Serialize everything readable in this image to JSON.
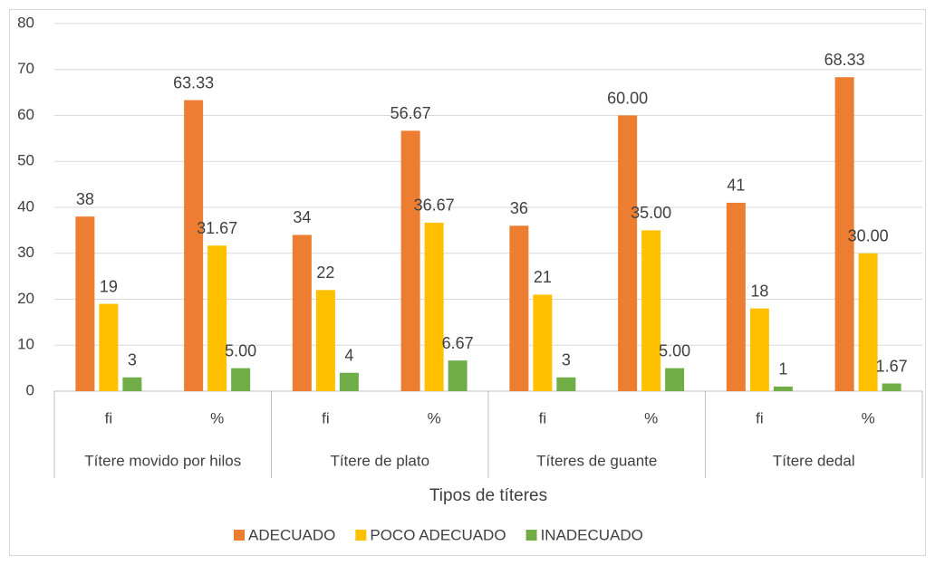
{
  "chart_data": {
    "type": "bar",
    "x_label": "Tipos de títeres",
    "categories": [
      "fi",
      "%",
      "fi",
      "%",
      "fi",
      "%",
      "fi",
      "%"
    ],
    "groups": [
      "Títere movido por hilos",
      "Títere de plato",
      "Títeres de guante",
      "Títere dedal"
    ],
    "series": [
      {
        "name": "ADECUADO",
        "color": "#ed7d31",
        "values": [
          38,
          63.33,
          34,
          56.67,
          36,
          60,
          41,
          68.33
        ],
        "value_labels": [
          "38",
          "63.33",
          "34",
          "56.67",
          "36",
          "60.00",
          "41",
          "68.33"
        ]
      },
      {
        "name": "POCO ADECUADO",
        "color": "#ffc000",
        "values": [
          19,
          31.67,
          22,
          36.67,
          21,
          35,
          18,
          30
        ],
        "value_labels": [
          "19",
          "31.67",
          "22",
          "36.67",
          "21",
          "35.00",
          "18",
          "30.00"
        ]
      },
      {
        "name": "INADECUADO",
        "color": "#70ad47",
        "values": [
          3,
          5,
          4,
          6.67,
          3,
          5,
          1,
          1.67
        ],
        "value_labels": [
          "3",
          "5.00",
          "4",
          "6.67",
          "3",
          "5.00",
          "1",
          "1.67"
        ]
      }
    ],
    "ylim": [
      0,
      80
    ],
    "yticks": [
      0,
      10,
      20,
      30,
      40,
      50,
      60,
      70,
      80
    ],
    "grid": true,
    "legend": "bottom"
  }
}
